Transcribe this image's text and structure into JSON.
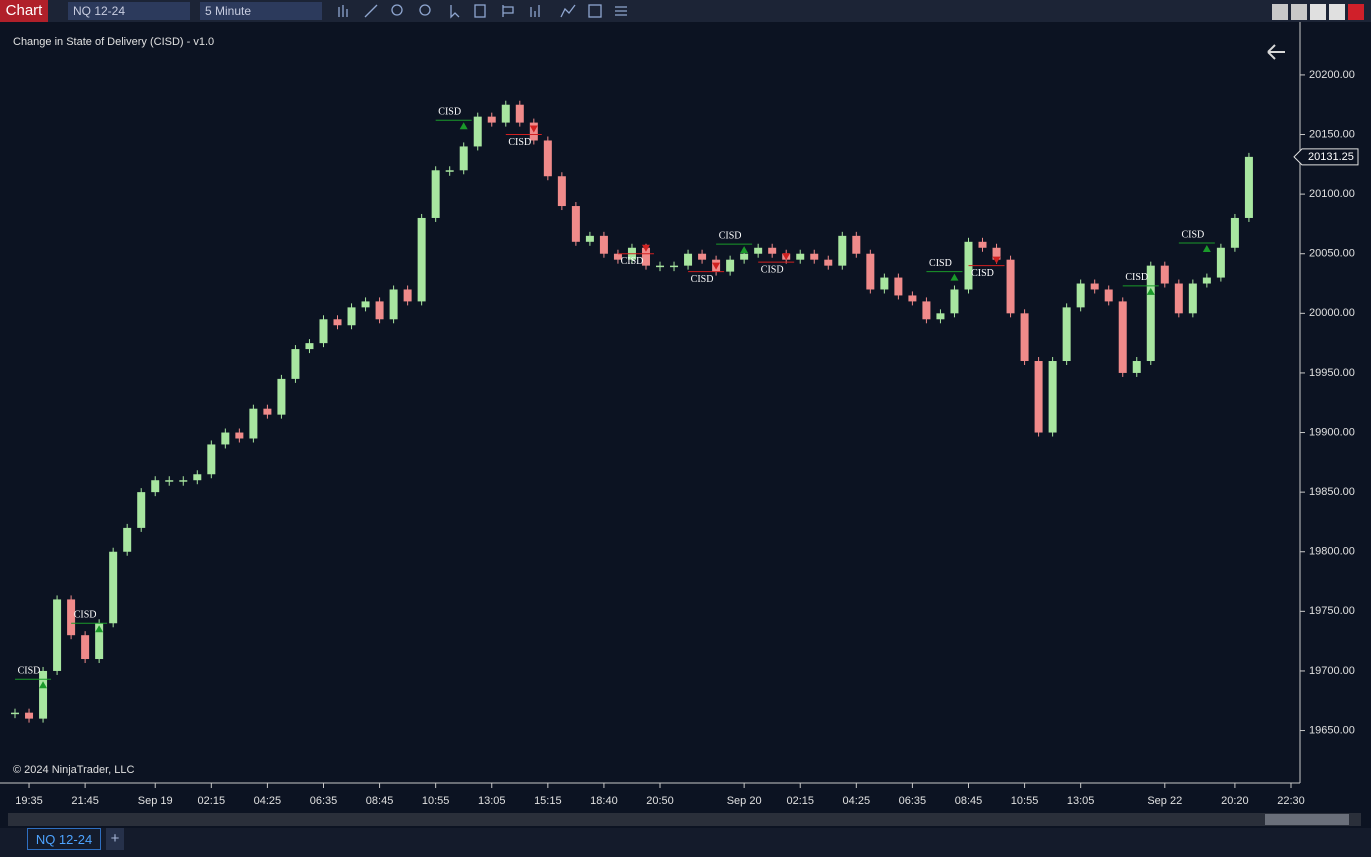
{
  "toolbar": {
    "chart_button": "Chart",
    "instrument": "NQ 12-24",
    "period": "5 Minute"
  },
  "indicator_title": "Change in State of Delivery (CISD) - v1.0",
  "copyright": "© 2024 NinjaTrader, LLC",
  "tabs": {
    "active": "NQ 12-24",
    "add": "+"
  },
  "chart_data": {
    "type": "candlestick",
    "categories": [
      null,
      "19:35",
      null,
      null,
      null,
      "21:45",
      null,
      null,
      null,
      null,
      "Sep 19",
      null,
      null,
      null,
      "02:15",
      null,
      null,
      null,
      "04:25",
      null,
      null,
      null,
      "06:35",
      null,
      null,
      null,
      "08:45",
      null,
      null,
      null,
      "10:55",
      null,
      null,
      null,
      "13:05",
      null,
      null,
      null,
      "15:15",
      null,
      null,
      null,
      "18:40",
      null,
      null,
      null,
      "20:50",
      null,
      null,
      null,
      null,
      null,
      "Sep 20",
      null,
      null,
      null,
      "02:15",
      null,
      null,
      null,
      "04:25",
      null,
      null,
      null,
      "06:35",
      null,
      null,
      null,
      "08:45",
      null,
      null,
      null,
      "10:55",
      null,
      null,
      null,
      "13:05",
      null,
      null,
      null,
      null,
      null,
      "Sep 22",
      null,
      null,
      null,
      null,
      "20:20",
      null,
      null,
      null,
      "22:30"
    ],
    "values": [
      19665,
      19660,
      19700,
      19760,
      19730,
      19710,
      19740,
      19800,
      19820,
      19850,
      19860,
      19860,
      19860,
      19865,
      19890,
      19900,
      19895,
      19920,
      19915,
      19945,
      19970,
      19975,
      19995,
      19990,
      20005,
      20010,
      19995,
      20020,
      20010,
      20080,
      20120,
      20120,
      20140,
      20165,
      20160,
      20175,
      20160,
      20145,
      20115,
      20090,
      20060,
      20065,
      20050,
      20045,
      20055,
      20040,
      20040,
      20040,
      20050,
      20045,
      20035,
      20045,
      20050,
      20055,
      20050,
      20045,
      20050,
      20045,
      20040,
      20065,
      20050,
      20020,
      20030,
      20015,
      20010,
      19995,
      20000,
      20020,
      20060,
      20055,
      20045,
      20000,
      19960,
      19900,
      19960,
      20005,
      20025,
      20020,
      20010,
      19950,
      19960,
      20040,
      20025,
      20000,
      20025,
      20030,
      20055,
      20080,
      20131.25,
      null,
      null,
      null
    ],
    "up_color": "#a8e6a0",
    "down_color": "#f08a8a",
    "ylim": [
      19606,
      20236
    ],
    "yticks": [
      {
        "value": 19650,
        "label": "19650.00"
      },
      {
        "value": 19700,
        "label": "19700.00"
      },
      {
        "value": 19750,
        "label": "19750.00"
      },
      {
        "value": 19800,
        "label": "19800.00"
      },
      {
        "value": 19850,
        "label": "19850.00"
      },
      {
        "value": 19900,
        "label": "19900.00"
      },
      {
        "value": 19950,
        "label": "19950.00"
      },
      {
        "value": 20000,
        "label": "20000.00"
      },
      {
        "value": 20050,
        "label": "20050.00"
      },
      {
        "value": 20100,
        "label": "20100.00"
      },
      {
        "value": 20150,
        "label": "20150.00"
      },
      {
        "value": 20200,
        "label": "20200.00"
      }
    ],
    "annotations": [
      {
        "text": "CISD",
        "x": 1,
        "y": 19693,
        "direction": "up"
      },
      {
        "text": "CISD",
        "x": 5,
        "y": 19740,
        "direction": "up"
      },
      {
        "text": "CISD",
        "x": 31,
        "y": 20162,
        "direction": "up"
      },
      {
        "text": "CISD",
        "x": 36,
        "y": 20150,
        "direction": "down"
      },
      {
        "text": "CISD",
        "x": 44,
        "y": 20050,
        "direction": "down"
      },
      {
        "text": "CISD",
        "x": 49,
        "y": 20035,
        "direction": "down"
      },
      {
        "text": "CISD",
        "x": 51,
        "y": 20058,
        "direction": "up"
      },
      {
        "text": "CISD",
        "x": 54,
        "y": 20043,
        "direction": "down"
      },
      {
        "text": "CISD",
        "x": 66,
        "y": 20035,
        "direction": "up"
      },
      {
        "text": "CISD",
        "x": 69,
        "y": 20040,
        "direction": "down"
      },
      {
        "text": "CISD",
        "x": 80,
        "y": 20023,
        "direction": "up"
      },
      {
        "text": "CISD",
        "x": 84,
        "y": 20059,
        "direction": "up"
      }
    ]
  }
}
